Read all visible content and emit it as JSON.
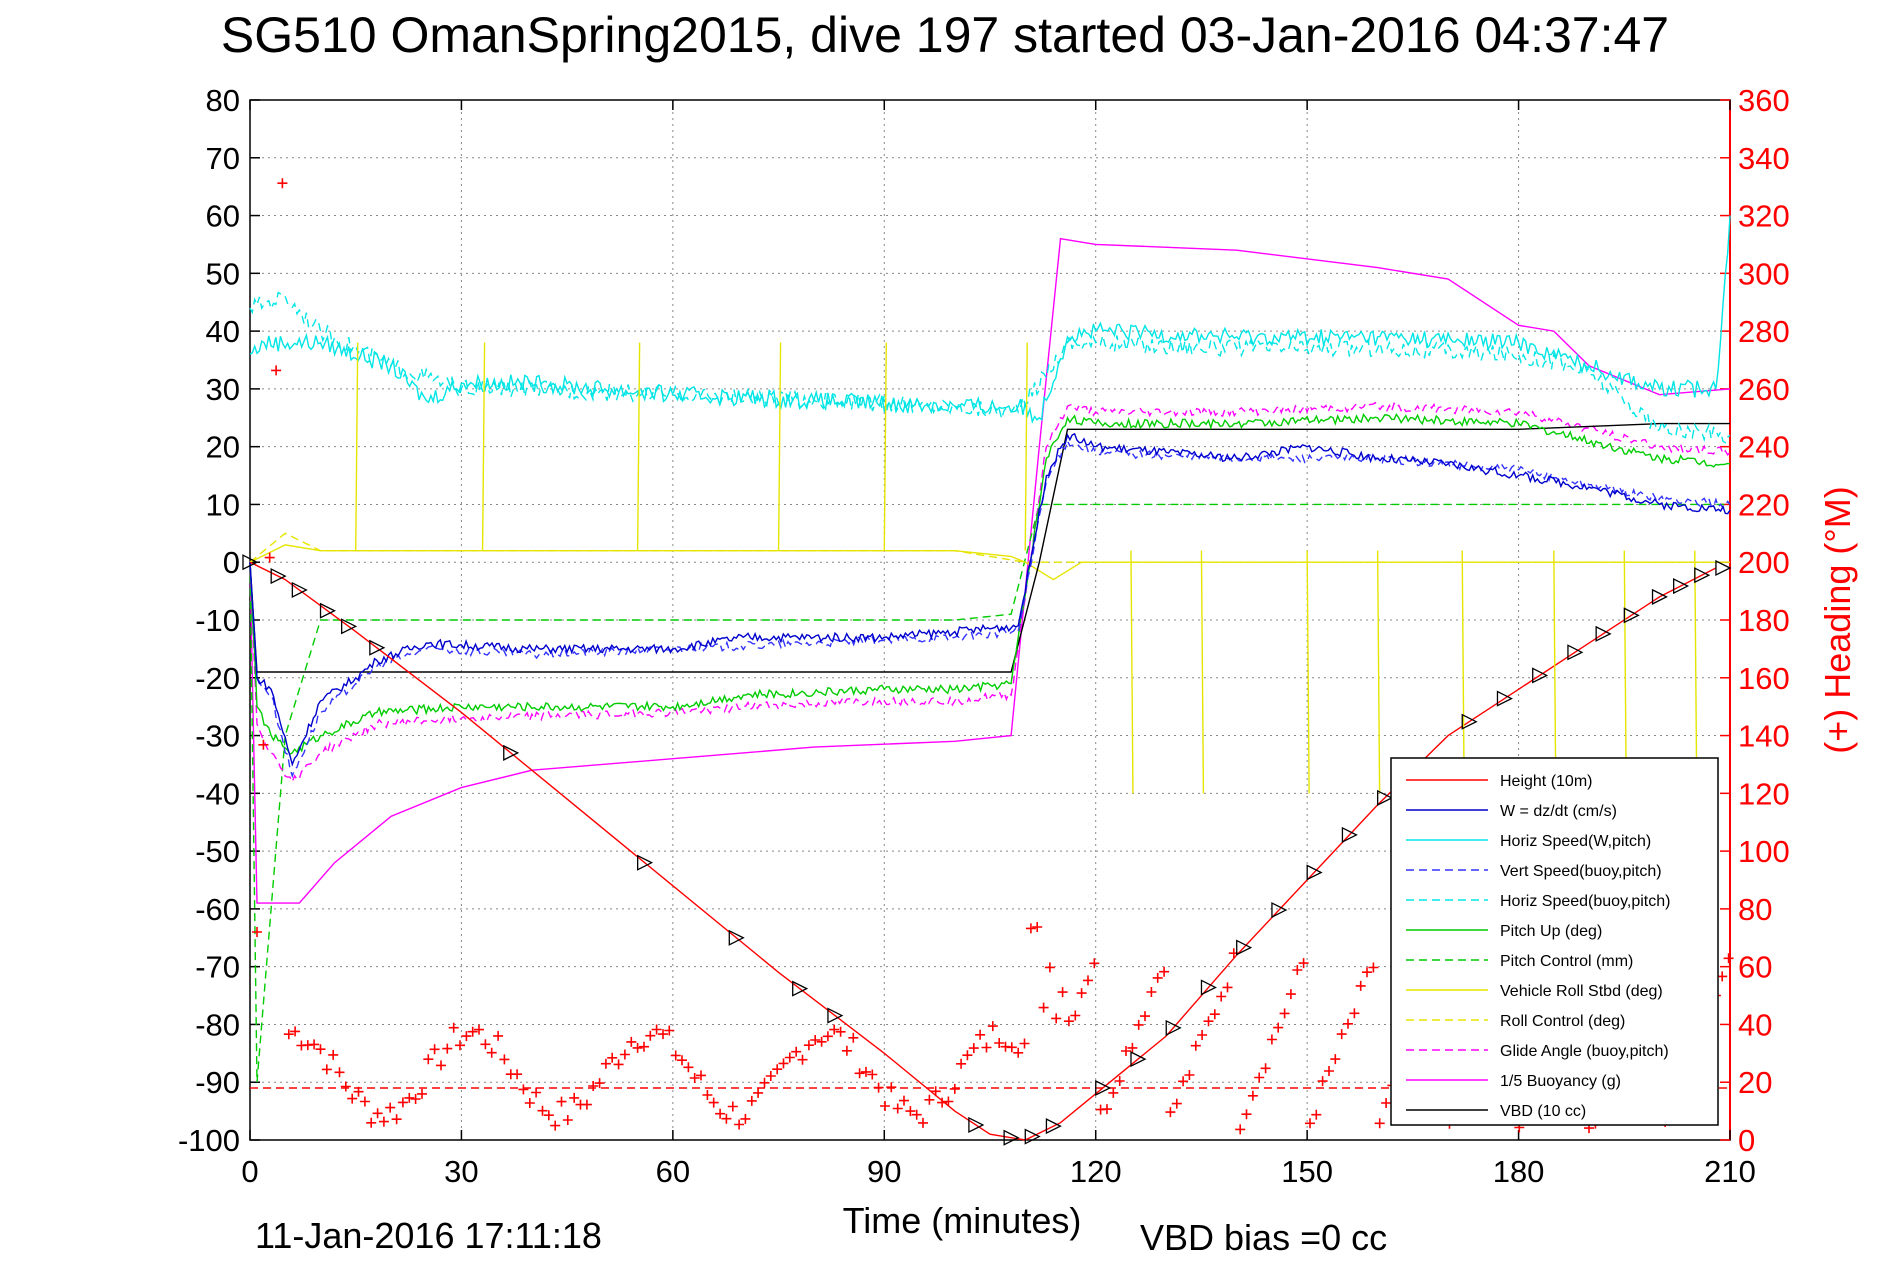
{
  "chart_data": {
    "type": "line",
    "title": "SG510 OmanSpring2015, dive 197 started 03-Jan-2016 04:37:47",
    "xlabel": "Time (minutes)",
    "ylabel": "",
    "ylabel_right": "(+) Heading (°M)",
    "xlim": [
      0,
      210
    ],
    "ylim": [
      -100,
      80
    ],
    "ylim_right": [
      0,
      360
    ],
    "x_ticks": [
      "0",
      "30",
      "60",
      "90",
      "120",
      "150",
      "180",
      "210"
    ],
    "y_ticks": [
      "80",
      "70",
      "60",
      "50",
      "40",
      "30",
      "20",
      "10",
      "0",
      "-10",
      "-20",
      "-30",
      "-40",
      "-50",
      "-60",
      "-70",
      "-80",
      "-90",
      "-100"
    ],
    "y_ticks_right": [
      "360",
      "340",
      "320",
      "300",
      "280",
      "260",
      "240",
      "220",
      "200",
      "180",
      "160",
      "140",
      "120",
      "100",
      "80",
      "60",
      "40",
      "20",
      "0"
    ],
    "grid": true,
    "legend_position": "bottom-right",
    "footer_timestamp": "11-Jan-2016 17:11:18",
    "footer_note": "VBD bias =0 cc",
    "series": [
      {
        "name": "Height (10m)",
        "color": "#ff0000",
        "style": "solid",
        "x": [
          0,
          5,
          15,
          30,
          45,
          60,
          75,
          90,
          100,
          105,
          110,
          115,
          120,
          130,
          140,
          150,
          160,
          170,
          180,
          190,
          200,
          208
        ],
        "y": [
          0,
          -3,
          -12,
          -26,
          -41,
          -56,
          -71,
          -85,
          -95,
          -99,
          -100,
          -97,
          -92,
          -82,
          -68,
          -55,
          -42,
          -30,
          -22,
          -14,
          -6,
          -1
        ]
      },
      {
        "name": "W = dz/dt (cm/s)",
        "color": "#0000cc",
        "style": "solid",
        "x": [
          0,
          1,
          3,
          6,
          10,
          15,
          18,
          25,
          40,
          60,
          70,
          80,
          90,
          100,
          109,
          113,
          116,
          120,
          130,
          140,
          150,
          160,
          170,
          180,
          190,
          200,
          210
        ],
        "y": [
          0,
          -20,
          -22,
          -35,
          -24,
          -20,
          -17,
          -14,
          -15,
          -15,
          -13,
          -13,
          -13,
          -12,
          -11,
          15,
          22,
          20,
          19,
          18,
          20,
          18,
          17,
          15,
          13,
          10,
          9
        ]
      },
      {
        "name": "Horiz Speed(W,pitch)",
        "color": "#00e5e5",
        "style": "solid",
        "x": [
          0,
          2,
          10,
          20,
          25,
          30,
          40,
          60,
          80,
          100,
          109,
          112,
          116,
          120,
          140,
          160,
          180,
          190,
          200,
          208,
          210
        ],
        "y": [
          36,
          38,
          38,
          34,
          28,
          31,
          31,
          29,
          28,
          27,
          27,
          25,
          39,
          40,
          39,
          39,
          38,
          34,
          30,
          30,
          60
        ]
      },
      {
        "name": "Vert Speed(buoy,pitch)",
        "color": "#3333ff",
        "style": "dashed",
        "x": [
          0,
          1,
          3,
          6,
          10,
          15,
          18,
          25,
          40,
          60,
          80,
          100,
          109,
          113,
          116,
          120,
          140,
          160,
          180,
          200,
          210
        ],
        "y": [
          0,
          -20,
          -23,
          -37,
          -26,
          -21,
          -18,
          -15,
          -16,
          -15,
          -14,
          -13,
          -12,
          14,
          21,
          19,
          18,
          18,
          16,
          11,
          10
        ]
      },
      {
        "name": "Horiz Speed(buoy,pitch)",
        "color": "#00e5e5",
        "style": "dashed",
        "x": [
          0,
          5,
          10,
          20,
          30,
          40,
          60,
          80,
          100,
          109,
          116,
          120,
          140,
          160,
          180,
          190,
          200,
          210
        ],
        "y": [
          44,
          46,
          40,
          34,
          30,
          30,
          29,
          28,
          27,
          26,
          38,
          38,
          37,
          37,
          36,
          33,
          23,
          22
        ]
      },
      {
        "name": "Pitch Up (deg)",
        "color": "#00cc00",
        "style": "solid",
        "x": [
          0,
          1,
          3,
          6,
          10,
          18,
          30,
          60,
          70,
          90,
          100,
          108,
          113,
          116,
          120,
          140,
          160,
          180,
          200,
          210
        ],
        "y": [
          0,
          -25,
          -30,
          -33,
          -30,
          -26,
          -25,
          -25,
          -23,
          -22,
          -22,
          -21,
          18,
          25,
          24,
          24,
          25,
          24,
          18,
          17
        ]
      },
      {
        "name": "Pitch Control (mm)",
        "color": "#00cc00",
        "style": "dashed",
        "x": [
          0,
          1,
          5,
          10,
          20,
          60,
          100,
          108,
          112,
          116,
          120,
          150,
          180,
          210
        ],
        "y": [
          0,
          -90,
          -30,
          -10,
          -10,
          -10,
          -10,
          -9,
          10,
          10,
          10,
          10,
          10,
          10
        ]
      },
      {
        "name": "Vehicle Roll Stbd (deg)",
        "color": "#e5e500",
        "style": "solid",
        "x": [
          0,
          5,
          10,
          20,
          40,
          60,
          80,
          100,
          108,
          110,
          114,
          118,
          130,
          150,
          170,
          190,
          210
        ],
        "y": [
          0,
          3,
          2,
          2,
          2,
          2,
          2,
          2,
          1,
          0,
          -3,
          0,
          0,
          0,
          0,
          0,
          0
        ]
      },
      {
        "name": "Roll Control (deg)",
        "color": "#e5e500",
        "style": "dashed",
        "x": [
          0,
          5,
          10,
          20,
          40,
          60,
          80,
          100,
          110,
          115,
          130,
          150,
          170,
          190,
          210
        ],
        "y": [
          0,
          5,
          2,
          2,
          2,
          2,
          2,
          2,
          0,
          0,
          0,
          0,
          0,
          0,
          0
        ]
      },
      {
        "name": "Glide Angle (buoy,pitch)",
        "color": "#ff00ff",
        "style": "dashed",
        "x": [
          0,
          1,
          3,
          6,
          10,
          18,
          30,
          60,
          70,
          90,
          100,
          108,
          113,
          116,
          120,
          140,
          160,
          180,
          200,
          210
        ],
        "y": [
          0,
          -28,
          -33,
          -38,
          -33,
          -28,
          -27,
          -26,
          -25,
          -24,
          -24,
          -23,
          20,
          27,
          26,
          26,
          27,
          26,
          20,
          19
        ]
      },
      {
        "name": "1/5 Buoyancy (g)",
        "color": "#ff00ff",
        "style": "solid",
        "x": [
          0,
          1,
          2,
          7,
          12,
          20,
          30,
          40,
          60,
          80,
          100,
          108,
          112,
          115,
          120,
          140,
          160,
          170,
          180,
          185,
          190,
          200,
          210
        ],
        "y": [
          0,
          -59,
          -59,
          -59,
          -52,
          -44,
          -39,
          -36,
          -34,
          -32,
          -31,
          -30,
          20,
          56,
          55,
          54,
          51,
          49,
          41,
          40,
          34,
          29,
          30
        ]
      },
      {
        "name": "VBD (10 cc)",
        "color": "#000000",
        "style": "solid",
        "x": [
          0,
          1,
          2,
          30,
          60,
          90,
          108,
          112,
          116,
          130,
          150,
          180,
          200,
          210
        ],
        "y": [
          0,
          -19,
          -19,
          -19,
          -19,
          -19,
          -19,
          0,
          23,
          23,
          23,
          23,
          24,
          24
        ]
      },
      {
        "name": "",
        "color": "#ff0000",
        "style": "dashed",
        "x": [
          0,
          210
        ],
        "y": [
          -91,
          -91
        ]
      }
    ]
  }
}
